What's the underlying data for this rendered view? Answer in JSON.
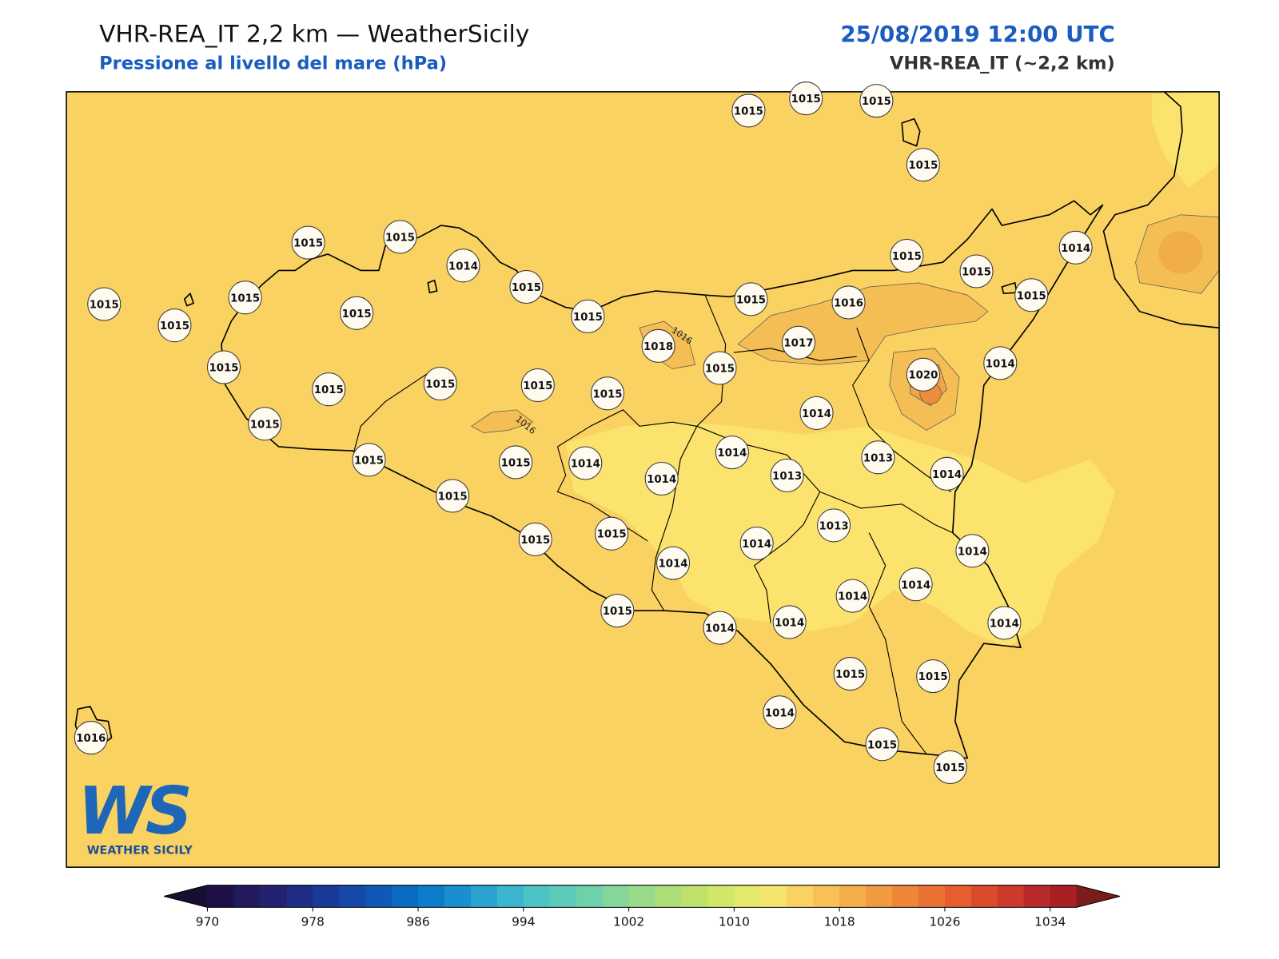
{
  "header": {
    "title": "VHR-REA_IT 2,2 km — WeatherSicily",
    "subtitle": "Pressione al livello del mare (hPa)",
    "datetime": "25/08/2019 12:00 UTC",
    "model": "VHR-REA_IT (~2,2 km)"
  },
  "stations": [
    1015,
    1015,
    1015,
    1015,
    1015,
    1015,
    1014,
    1015,
    1014,
    1015,
    1015,
    1015,
    1015,
    1015,
    1015,
    1015,
    1015,
    1015,
    1016,
    1018,
    1017,
    1015,
    1020,
    1014,
    1015,
    1015,
    1015,
    1015,
    1015,
    1014,
    1015,
    1014,
    1013,
    1015,
    1015,
    1014,
    1014,
    1013,
    1014,
    1015,
    1013,
    1015,
    1015,
    1014,
    1014,
    1014,
    1014,
    1014,
    1015,
    1014,
    1014,
    1014,
    1015,
    1015,
    1014,
    1015,
    1015,
    1016
  ],
  "contour_labels": [
    "1016",
    "1016"
  ],
  "logo": {
    "mark": "WS",
    "text": "WEATHER SICILY"
  },
  "colorbar": {
    "lim": [
      970,
      1036
    ],
    "ticks": [
      970,
      978,
      986,
      994,
      1002,
      1010,
      1018,
      1026,
      1034
    ],
    "under": "#180e33",
    "over": "#7a1c1c",
    "colors": [
      "#1f1047",
      "#221a5c",
      "#232270",
      "#1f2d86",
      "#1a3a9a",
      "#1548a8",
      "#0f58b6",
      "#0b6ac2",
      "#0b7dca",
      "#1a8fcf",
      "#2ba3d1",
      "#3bb6cf",
      "#4cc4c6",
      "#5dcbb9",
      "#6fd1aa",
      "#84d69a",
      "#98db8a",
      "#acdf78",
      "#bfe36a",
      "#d2e66a",
      "#e4e86c",
      "#f5e56c",
      "#fad262",
      "#f8c055",
      "#f5ad4a",
      "#f29a40",
      "#ee8638",
      "#e97232",
      "#e45e2e",
      "#da4b2c",
      "#cc3a2b",
      "#b92a2a",
      "#a81f24"
    ]
  }
}
